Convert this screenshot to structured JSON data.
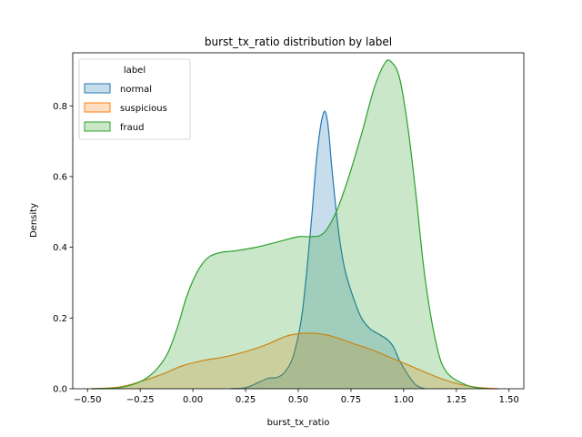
{
  "chart_data": {
    "type": "area",
    "title": "burst_tx_ratio distribution by label",
    "xlabel": "burst_tx_ratio",
    "ylabel": "Density",
    "xlim": [
      -0.57,
      1.57
    ],
    "ylim": [
      0,
      0.95
    ],
    "xticks": [
      -0.5,
      -0.25,
      0.0,
      0.25,
      0.5,
      0.75,
      1.0,
      1.25,
      1.5
    ],
    "xtick_labels": [
      "−0.50",
      "−0.25",
      "0.00",
      "0.25",
      "0.50",
      "0.75",
      "1.00",
      "1.25",
      "1.50"
    ],
    "yticks": [
      0.0,
      0.2,
      0.4,
      0.6,
      0.8
    ],
    "ytick_labels": [
      "0.0",
      "0.2",
      "0.4",
      "0.6",
      "0.8"
    ],
    "grid": false,
    "legend": {
      "title": "label",
      "placement": "top-left"
    },
    "series": [
      {
        "name": "normal",
        "color": "#1f77b4",
        "points": [
          [
            0.18,
            0.0
          ],
          [
            0.25,
            0.003
          ],
          [
            0.32,
            0.02
          ],
          [
            0.36,
            0.03
          ],
          [
            0.4,
            0.032
          ],
          [
            0.44,
            0.05
          ],
          [
            0.48,
            0.1
          ],
          [
            0.52,
            0.22
          ],
          [
            0.56,
            0.46
          ],
          [
            0.59,
            0.67
          ],
          [
            0.62,
            0.78
          ],
          [
            0.64,
            0.75
          ],
          [
            0.66,
            0.62
          ],
          [
            0.69,
            0.45
          ],
          [
            0.72,
            0.34
          ],
          [
            0.76,
            0.26
          ],
          [
            0.8,
            0.2
          ],
          [
            0.84,
            0.17
          ],
          [
            0.88,
            0.155
          ],
          [
            0.92,
            0.14
          ],
          [
            0.95,
            0.12
          ],
          [
            0.98,
            0.08
          ],
          [
            1.02,
            0.04
          ],
          [
            1.06,
            0.01
          ],
          [
            1.1,
            0.0
          ]
        ]
      },
      {
        "name": "suspicious",
        "color": "#ff7f0e",
        "points": [
          [
            -0.48,
            0.0
          ],
          [
            -0.35,
            0.005
          ],
          [
            -0.25,
            0.02
          ],
          [
            -0.15,
            0.04
          ],
          [
            -0.05,
            0.065
          ],
          [
            0.05,
            0.08
          ],
          [
            0.15,
            0.09
          ],
          [
            0.25,
            0.105
          ],
          [
            0.35,
            0.125
          ],
          [
            0.45,
            0.15
          ],
          [
            0.55,
            0.157
          ],
          [
            0.65,
            0.15
          ],
          [
            0.75,
            0.13
          ],
          [
            0.85,
            0.11
          ],
          [
            0.95,
            0.085
          ],
          [
            1.05,
            0.06
          ],
          [
            1.15,
            0.035
          ],
          [
            1.25,
            0.015
          ],
          [
            1.35,
            0.004
          ],
          [
            1.45,
            0.0
          ]
        ]
      },
      {
        "name": "fraud",
        "color": "#2ca02c",
        "points": [
          [
            -0.48,
            0.0
          ],
          [
            -0.35,
            0.003
          ],
          [
            -0.25,
            0.02
          ],
          [
            -0.18,
            0.05
          ],
          [
            -0.12,
            0.1
          ],
          [
            -0.07,
            0.18
          ],
          [
            -0.03,
            0.26
          ],
          [
            0.02,
            0.33
          ],
          [
            0.07,
            0.37
          ],
          [
            0.13,
            0.385
          ],
          [
            0.2,
            0.39
          ],
          [
            0.3,
            0.4
          ],
          [
            0.4,
            0.415
          ],
          [
            0.5,
            0.43
          ],
          [
            0.56,
            0.43
          ],
          [
            0.62,
            0.44
          ],
          [
            0.68,
            0.5
          ],
          [
            0.74,
            0.6
          ],
          [
            0.8,
            0.72
          ],
          [
            0.86,
            0.85
          ],
          [
            0.91,
            0.92
          ],
          [
            0.94,
            0.925
          ],
          [
            0.98,
            0.88
          ],
          [
            1.02,
            0.74
          ],
          [
            1.06,
            0.54
          ],
          [
            1.1,
            0.32
          ],
          [
            1.15,
            0.14
          ],
          [
            1.2,
            0.05
          ],
          [
            1.3,
            0.01
          ],
          [
            1.4,
            0.0
          ]
        ]
      }
    ]
  }
}
